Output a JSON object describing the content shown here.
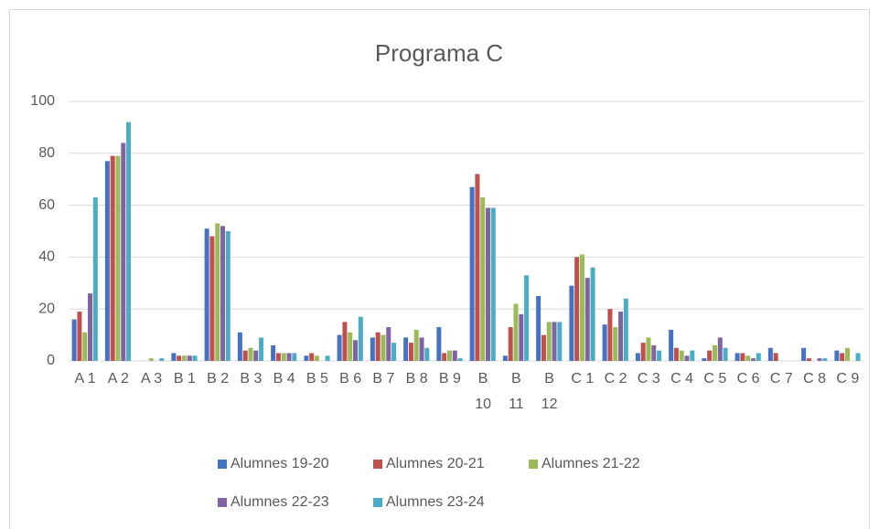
{
  "chart_data": {
    "type": "bar",
    "title": "Programa C",
    "categories": [
      "A 1",
      "A 2",
      "A 3",
      "B 1",
      "B 2",
      "B 3",
      "B 4",
      "B 5",
      "B 6",
      "B 7",
      "B 8",
      "B 9",
      "B 10",
      "B 11",
      "B 12",
      "C 1",
      "C 2",
      "C 3",
      "C 4",
      "C 5",
      "C 6",
      "C 7",
      "C 8",
      "C 9"
    ],
    "series": [
      {
        "name": "Alumnes 19-20",
        "color": "#4472c4",
        "values": [
          16,
          77,
          0,
          3,
          51,
          11,
          6,
          2,
          10,
          9,
          9,
          13,
          67,
          2,
          25,
          29,
          14,
          3,
          12,
          1,
          3,
          5,
          5,
          4
        ]
      },
      {
        "name": "Alumnes 20-21",
        "color": "#c0504d",
        "values": [
          19,
          79,
          0,
          2,
          48,
          4,
          3,
          3,
          15,
          11,
          7,
          3,
          72,
          13,
          10,
          40,
          20,
          7,
          5,
          4,
          3,
          3,
          1,
          3
        ]
      },
      {
        "name": "Alumnes 21-22",
        "color": "#9bbb59",
        "values": [
          11,
          79,
          1,
          2,
          53,
          5,
          3,
          2,
          11,
          10,
          12,
          4,
          63,
          22,
          15,
          41,
          13,
          9,
          4,
          6,
          2,
          0,
          0,
          5
        ]
      },
      {
        "name": "Alumnes 22-23",
        "color": "#8064a2",
        "values": [
          26,
          84,
          0,
          2,
          52,
          4,
          3,
          0,
          8,
          13,
          9,
          4,
          59,
          18,
          15,
          32,
          19,
          6,
          2,
          9,
          1,
          0,
          1,
          0
        ]
      },
      {
        "name": "Alumnes 23-24",
        "color": "#4bacc6",
        "values": [
          63,
          92,
          1,
          2,
          50,
          9,
          3,
          2,
          17,
          7,
          5,
          1,
          59,
          33,
          15,
          36,
          24,
          4,
          4,
          5,
          3,
          0,
          1,
          3
        ]
      }
    ],
    "ylim": [
      0,
      100
    ],
    "yticks": [
      0,
      20,
      40,
      60,
      80,
      100
    ],
    "grid": true,
    "legend": "bottom"
  }
}
